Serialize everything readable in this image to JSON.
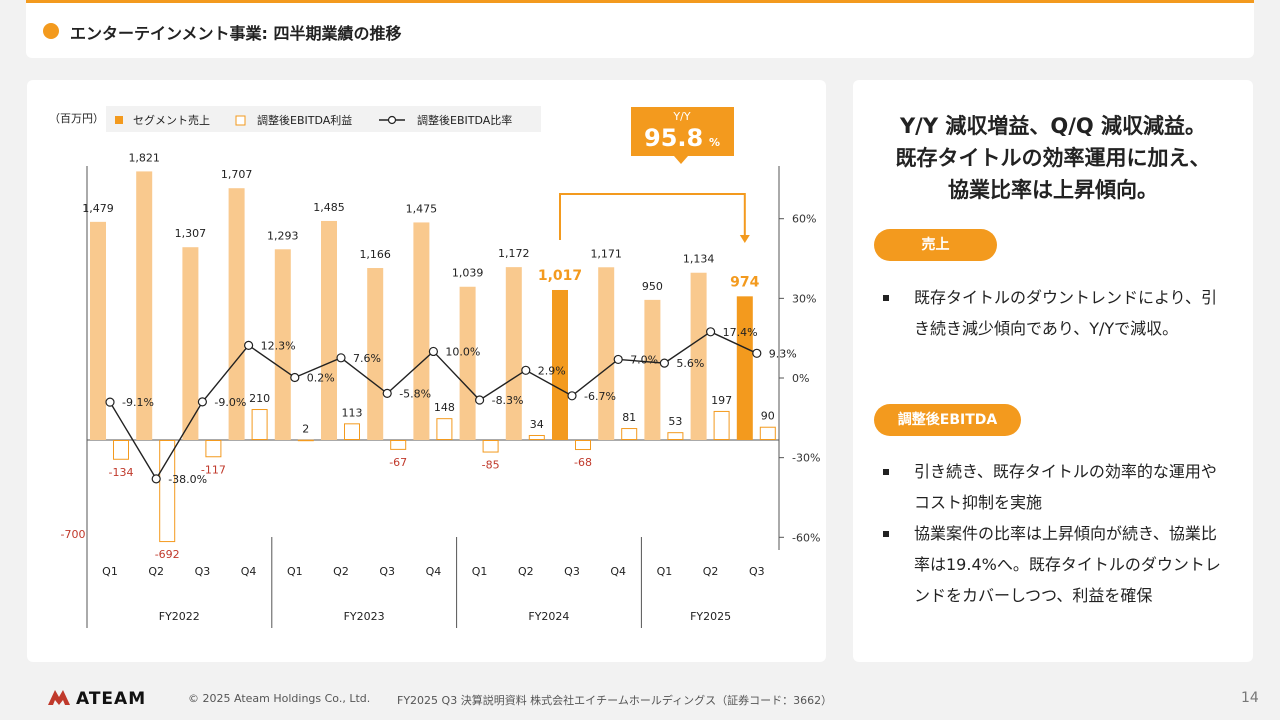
{
  "page": {
    "title": "エンターテインメント事業: 四半期業績の推移",
    "copyright": "© 2025 Ateam Holdings Co., Ltd.",
    "doc_info": "FY2025 Q3 決算説明資料 株式会社エイチームホールディングス（証券コード：3662）",
    "page_number": "14",
    "logo_text": "ATEAM",
    "accent_color": "#f39a1e"
  },
  "summary": {
    "headline": [
      "Y/Y 減収増益、Q/Q 減収減益。",
      "既存タイトルの効率運用に加え、",
      "協業比率は上昇傾向。"
    ],
    "sections": [
      {
        "label": "売上",
        "bullets": [
          "既存タイトルのダウントレンドにより、引き続き減少傾向であり、Y/Yで減収。"
        ]
      },
      {
        "label": "調整後EBITDA",
        "bullets": [
          "引き続き、既存タイトルの効率的な運用やコスト抑制を実施",
          "協業案件の比率は上昇傾向が続き、協業比率は19.4%へ。既存タイトルのダウントレンドをカバーしつつ、利益を確保"
        ]
      }
    ]
  },
  "chart_data": {
    "type": "bar",
    "unit_label": "（百万円）",
    "categories": [
      "Q1",
      "Q2",
      "Q3",
      "Q4",
      "Q1",
      "Q2",
      "Q3",
      "Q4",
      "Q1",
      "Q2",
      "Q3",
      "Q4",
      "Q1",
      "Q2",
      "Q3"
    ],
    "fiscal_years": [
      {
        "label": "FY2022",
        "count": 4
      },
      {
        "label": "FY2023",
        "count": 4
      },
      {
        "label": "FY2024",
        "count": 4
      },
      {
        "label": "FY2025",
        "count": 3
      }
    ],
    "series": [
      {
        "name": "セグメント売上",
        "kind": "bar",
        "values": [
          1479,
          1821,
          1307,
          1707,
          1293,
          1485,
          1166,
          1475,
          1039,
          1172,
          1017,
          1171,
          950,
          1134,
          974
        ],
        "labels": [
          "1,479",
          "1,821",
          "1,307",
          "1,707",
          "1,293",
          "1,485",
          "1,166",
          "1,475",
          "1,039",
          "1,172",
          "1,017",
          "1,171",
          "950",
          "1,134",
          "974"
        ],
        "highlight": [
          10,
          14
        ]
      },
      {
        "name": "調整後EBITDA利益",
        "kind": "bar-outline",
        "values": [
          -134,
          -692,
          -117,
          210,
          2,
          113,
          -67,
          148,
          -85,
          34,
          -68,
          81,
          53,
          197,
          90
        ],
        "labels": [
          "-134",
          "-692",
          "-117",
          "210",
          "2",
          "113",
          "-67",
          "148",
          "-85",
          "34",
          "-68",
          "81",
          "53",
          "197",
          "90"
        ]
      },
      {
        "name": "調整後EBITDA比率",
        "kind": "line",
        "axis": "right",
        "values": [
          -9.1,
          -38.0,
          -9.0,
          12.3,
          0.2,
          7.6,
          -5.8,
          10.0,
          -8.3,
          2.9,
          -6.7,
          7.0,
          5.6,
          17.4,
          9.3
        ],
        "labels": [
          "-9.1%",
          "-38.0%",
          "-9.0%",
          "12.3%",
          "0.2%",
          "7.6%",
          "-5.8%",
          "10.0%",
          "-8.3%",
          "2.9%",
          "-6.7%",
          "7.0%",
          "5.6%",
          "17.4%",
          "9.3%"
        ]
      }
    ],
    "left_axis_label": "-700",
    "right_axis": {
      "ticks": [
        60,
        30,
        0,
        -30,
        -60
      ],
      "labels": [
        "60%",
        "30%",
        "0%",
        "-30%",
        "-60%"
      ]
    },
    "callout": {
      "label": "Y/Y",
      "value": "95.8",
      "unit": "%"
    },
    "colors": {
      "bar": "#f9c98e",
      "bar_highlight": "#f39a1e",
      "outline": "#f39a1e",
      "negative_label": "#c0392b",
      "line": "#222222"
    }
  }
}
